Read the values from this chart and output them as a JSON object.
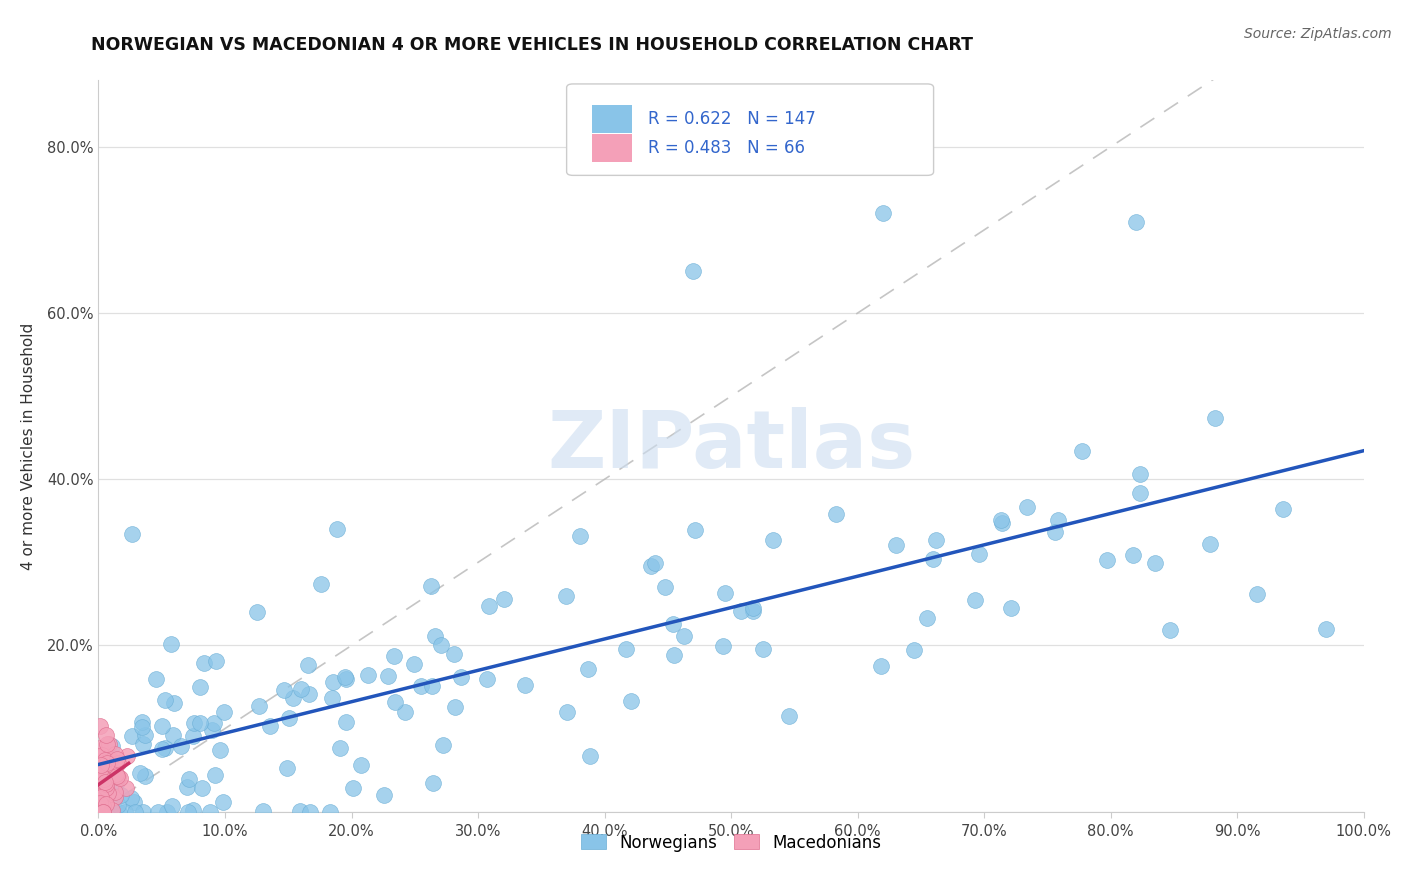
{
  "title": "NORWEGIAN VS MACEDONIAN 4 OR MORE VEHICLES IN HOUSEHOLD CORRELATION CHART",
  "source": "Source: ZipAtlas.com",
  "ylabel": "4 or more Vehicles in Household",
  "xlim": [
    0,
    1.0
  ],
  "ylim": [
    0,
    0.88
  ],
  "norwegian_color": "#89c4e8",
  "norwegian_edge_color": "#6aaed6",
  "macedonian_color": "#f4a0b8",
  "macedonian_edge_color": "#e07090",
  "norwegian_line_color": "#2255bb",
  "macedonian_line_color": "#cc3366",
  "diagonal_color": "#bbbbbb",
  "norwegian_R": 0.622,
  "norwegian_N": 147,
  "macedonian_R": 0.483,
  "macedonian_N": 66,
  "legend_R_color": "#3366cc",
  "watermark_color": "#ccddf0",
  "grid_color": "#e0e0e0",
  "legend_box_color": "#f0f0f0"
}
